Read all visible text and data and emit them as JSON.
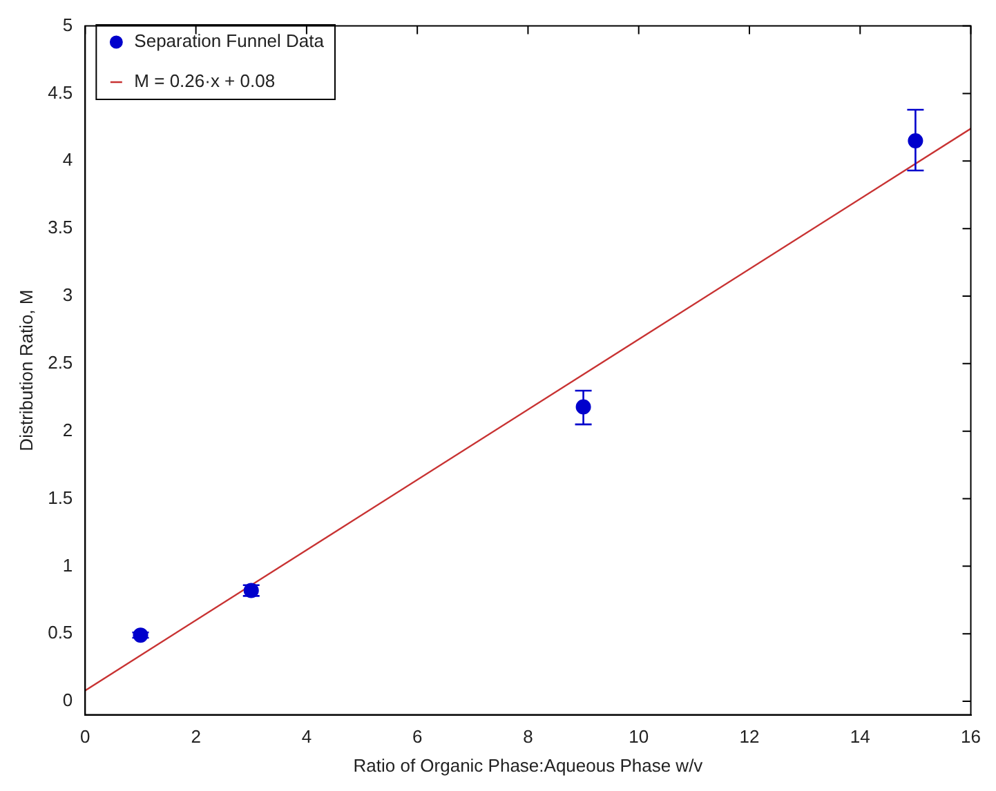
{
  "chart_data": {
    "type": "scatter",
    "xlabel": "Ratio of Organic Phase:Aqueous Phase w/v",
    "ylabel": "Distribution Ratio, M",
    "xlim": [
      0,
      16
    ],
    "xticks": [
      0,
      2,
      4,
      6,
      8,
      10,
      12,
      14,
      16
    ],
    "ylim": [
      -0.1,
      5
    ],
    "yticks": [
      0,
      0.5,
      1,
      1.5,
      2,
      2.5,
      3,
      3.5,
      4,
      4.5,
      5
    ],
    "grid": false,
    "legend": "top left",
    "marker": "circle",
    "series": [
      {
        "name": "Separation Funnel Data",
        "color": "#0000cc",
        "x": [
          1,
          3,
          9,
          15
        ],
        "values": [
          0.49,
          0.82,
          2.18,
          4.15
        ],
        "errors": [
          0.02,
          0.04,
          [
            2.05,
            2.3
          ],
          [
            3.93,
            4.38
          ]
        ]
      },
      {
        "name": "M = 0.26·x + 0.08",
        "type": "line",
        "color": "#c83232",
        "x": [
          0,
          16
        ],
        "values": [
          0.08,
          4.24
        ],
        "line_style": "solid",
        "marker": "none"
      }
    ]
  }
}
